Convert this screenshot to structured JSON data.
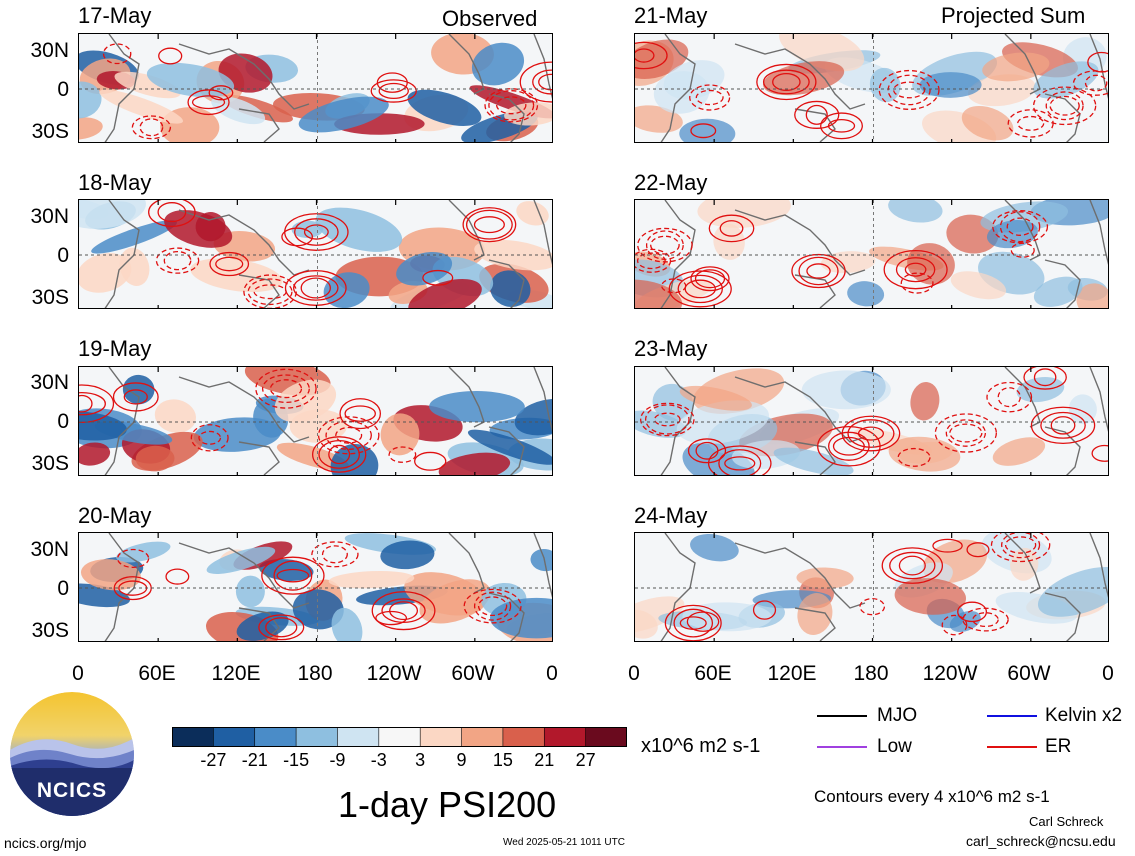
{
  "headers": {
    "left": "Observed",
    "right": "Projected Sum"
  },
  "panels_left": [
    {
      "date": "17-May"
    },
    {
      "date": "18-May"
    },
    {
      "date": "19-May"
    },
    {
      "date": "20-May"
    }
  ],
  "panels_right": [
    {
      "date": "21-May"
    },
    {
      "date": "22-May"
    },
    {
      "date": "23-May"
    },
    {
      "date": "24-May"
    }
  ],
  "y_ticks": [
    "30N",
    "0",
    "30S"
  ],
  "x_ticks": [
    "0",
    "60E",
    "120E",
    "180",
    "120W",
    "60W",
    "0"
  ],
  "colorbar": {
    "ticks": [
      "-27",
      "-21",
      "-15",
      "-9",
      "-3",
      "3",
      "9",
      "15",
      "21",
      "27"
    ],
    "unit": "x10^6 m2 s-1",
    "colors": [
      "#0b2d5a",
      "#1f5fa3",
      "#4a8cc8",
      "#8ebfe0",
      "#cfe4f2",
      "#f7f7f7",
      "#fbd7c4",
      "#f2a585",
      "#d9604c",
      "#b2182b",
      "#6a0a1e"
    ]
  },
  "legend": [
    {
      "label": "MJO",
      "color": "#000000"
    },
    {
      "label": "Kelvin x2",
      "color": "#1010e0"
    },
    {
      "label": "Low",
      "color": "#a040e0"
    },
    {
      "label": "ER",
      "color": "#e01010"
    }
  ],
  "contour_note": "Contours every 4 x10^6 m2 s-1",
  "title": "1-day PSI200",
  "logo_text": "NCICS",
  "footer": {
    "left": "ncics.org/mjo",
    "center": "Wed 2025-05-21 1011 UTC",
    "author": "Carl Schreck",
    "email": "carl_schreck@ncsu.edu"
  },
  "chart_data": {
    "type": "heatmap",
    "title": "1-day PSI200",
    "xlabel": "",
    "ylabel": "",
    "x_ticks": [
      "0",
      "60E",
      "120E",
      "180",
      "120W",
      "60W",
      "0"
    ],
    "y_ticks": [
      "30N",
      "0",
      "30S"
    ],
    "color_scale_ticks": [
      -27,
      -21,
      -15,
      -9,
      -3,
      3,
      9,
      15,
      21,
      27
    ],
    "color_unit": "x10^6 m2 s-1",
    "contour_interval": 4,
    "panels": [
      {
        "column": "Observed",
        "date": "17-May"
      },
      {
        "column": "Observed",
        "date": "18-May"
      },
      {
        "column": "Observed",
        "date": "19-May"
      },
      {
        "column": "Observed",
        "date": "20-May"
      },
      {
        "column": "Projected Sum",
        "date": "21-May"
      },
      {
        "column": "Projected Sum",
        "date": "22-May"
      },
      {
        "column": "Projected Sum",
        "date": "23-May"
      },
      {
        "column": "Projected Sum",
        "date": "24-May"
      }
    ]
  }
}
